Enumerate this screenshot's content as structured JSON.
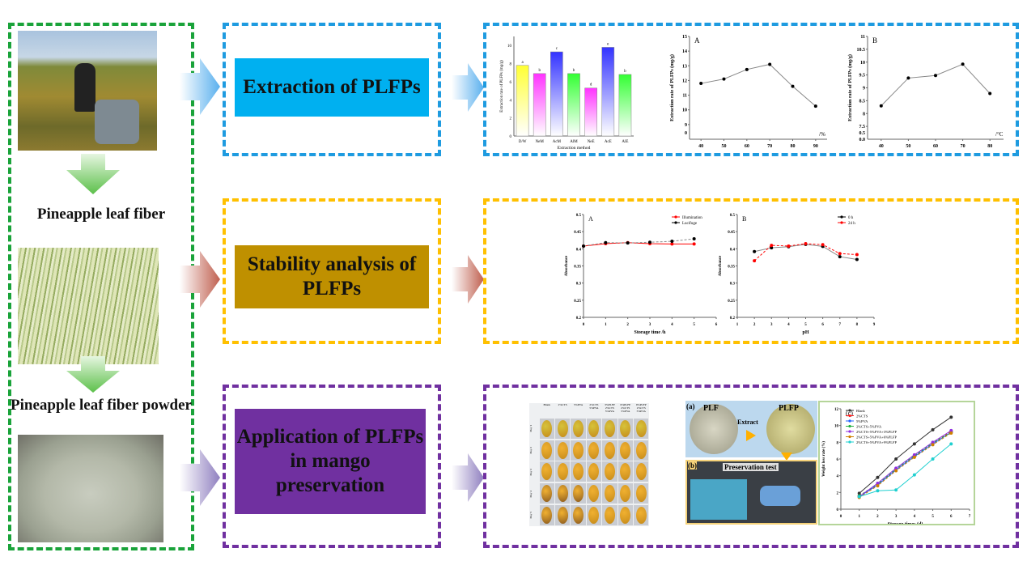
{
  "left_panel": {
    "label_fiber": "Pineapple leaf fiber",
    "label_powder": "Pineapple leaf fiber powder"
  },
  "steps": [
    {
      "title": "Extraction of PLFPs",
      "color": "#00b0f0",
      "border": "#1e9be0"
    },
    {
      "title": "Stability analysis of PLFPs",
      "color": "#bf9000",
      "border": "#ffc000"
    },
    {
      "title": "Application of PLFPs in mango preservation",
      "color": "#7030a0",
      "border": "#7030a0"
    }
  ],
  "mango_grid": {
    "columns": [
      "Blank",
      "2%CTS",
      "5%PVA",
      "2%CTS 5%PVA",
      "3%PLFP 2%CTS 5%PVA",
      "6%PLFP 2%CTS 5%PVA",
      "9%PLFP 2%CTS 5%PVA"
    ],
    "rows": [
      "Day 1",
      "Day 2",
      "Day 3",
      "Day 4",
      "Day 5"
    ]
  },
  "preservation_photos": {
    "label_a": "(a)",
    "label_b": "(b)",
    "plf": "PLF",
    "plfp": "PLFP",
    "extract": "Extract",
    "test": "Preservation test"
  },
  "chart_data": [
    {
      "id": "extraction-method",
      "type": "bar",
      "title": "",
      "xlabel": "Extraction method",
      "ylabel": "Extraction rate of PLFPs (mg/g)",
      "categories": [
        "D/W",
        "NeM",
        "AcM",
        "AlM",
        "NeE",
        "AcE",
        "AlE"
      ],
      "values": [
        7.8,
        6.9,
        9.3,
        6.9,
        5.3,
        9.8,
        6.8
      ],
      "letters": [
        "a",
        "b",
        "c",
        "b",
        "d",
        "e",
        "b"
      ],
      "colors": [
        "#ffff33",
        "#ff33ff",
        "#3333ff",
        "#33ff33",
        "#ff33ff",
        "#3333ff",
        "#33ff33"
      ],
      "ylim": [
        0,
        11
      ],
      "yticks": [
        0,
        2,
        4,
        6,
        8,
        10
      ]
    },
    {
      "id": "ethanol-concentration",
      "type": "line",
      "panel": "A",
      "xlabel": "",
      "unit": "/%",
      "ylabel": "Extraction rate of PLFPs (mg/g)",
      "x": [
        40,
        50,
        60,
        70,
        80,
        90
      ],
      "series": [
        {
          "name": "",
          "values": [
            11.8,
            12.1,
            12.75,
            13.1,
            11.6,
            10.25
          ],
          "color": "#000000"
        }
      ],
      "xlim": [
        35,
        95
      ],
      "ylim": [
        8,
        15
      ],
      "xticks": [
        40,
        50,
        60,
        70,
        80,
        90
      ],
      "yticks": [
        9,
        10,
        11,
        12,
        13,
        14,
        15
      ],
      "extra_yticks": [
        "0"
      ]
    },
    {
      "id": "temperature",
      "type": "line",
      "panel": "B",
      "xlabel": "",
      "unit": "/°C",
      "ylabel": "Extraction rate of PLFPs (mg/g)",
      "x": [
        40,
        50,
        60,
        70,
        80
      ],
      "series": [
        {
          "name": "",
          "values": [
            8.3,
            9.38,
            9.48,
            9.92,
            8.78
          ],
          "color": "#000000"
        }
      ],
      "xlim": [
        35,
        85
      ],
      "ylim": [
        7.0,
        11.0
      ],
      "xticks": [
        40,
        50,
        60,
        70,
        80
      ],
      "yticks": [
        7.5,
        8.0,
        8.5,
        9.0,
        9.5,
        10.0,
        10.5,
        11.0
      ],
      "extra_yticks": [
        "0.5",
        "0.0"
      ]
    },
    {
      "id": "storage-time-stability",
      "type": "line",
      "panel": "A",
      "xlabel": "Storage time /h",
      "ylabel": "Absorbance",
      "x": [
        0,
        1,
        2,
        3,
        4,
        5
      ],
      "series": [
        {
          "name": "Illumination",
          "values": [
            0.408,
            0.415,
            0.418,
            0.415,
            0.414,
            0.414
          ],
          "color": "#ff0000"
        },
        {
          "name": "Lucifuge",
          "values": [
            0.408,
            0.418,
            0.417,
            0.419,
            0.422,
            0.429
          ],
          "color": "#000000"
        }
      ],
      "xlim": [
        0,
        6
      ],
      "ylim": [
        0.2,
        0.5
      ],
      "xticks": [
        0,
        1,
        2,
        3,
        4,
        5,
        6
      ],
      "yticks": [
        0.2,
        0.25,
        0.3,
        0.35,
        0.4,
        0.45,
        0.5
      ],
      "legend": "top-right"
    },
    {
      "id": "ph-stability",
      "type": "line",
      "panel": "B",
      "xlabel": "pH",
      "ylabel": "Absorbance",
      "x": [
        2,
        3,
        4,
        5,
        6,
        7,
        8
      ],
      "series": [
        {
          "name": "0 h",
          "values": [
            0.392,
            0.403,
            0.406,
            0.413,
            0.407,
            0.377,
            0.369
          ],
          "color": "#000000"
        },
        {
          "name": "24 h",
          "values": [
            0.365,
            0.41,
            0.408,
            0.415,
            0.412,
            0.386,
            0.383
          ],
          "color": "#ff0000"
        }
      ],
      "xlim": [
        1,
        9
      ],
      "ylim": [
        0.2,
        0.5
      ],
      "xticks": [
        1,
        2,
        3,
        4,
        5,
        6,
        7,
        8,
        9
      ],
      "yticks": [
        0.2,
        0.25,
        0.3,
        0.35,
        0.4,
        0.45,
        0.5
      ],
      "legend": "top-right"
    },
    {
      "id": "weight-loss",
      "type": "line",
      "panel": "(c)",
      "xlabel": "Storage times (d)",
      "ylabel": "Weight loss rate (%)",
      "x": [
        1,
        2,
        3,
        4,
        5,
        6
      ],
      "series": [
        {
          "name": "Blank",
          "values": [
            1.9,
            3.8,
            6.0,
            7.8,
            9.5,
            11.0
          ],
          "color": "#333333"
        },
        {
          "name": "2%CTS",
          "values": [
            1.6,
            3.0,
            4.8,
            6.4,
            7.9,
            9.3
          ],
          "color": "#ff2020"
        },
        {
          "name": "5%PVA",
          "values": [
            1.5,
            2.9,
            4.7,
            6.3,
            7.8,
            9.2
          ],
          "color": "#2060ff"
        },
        {
          "name": "2%CTS+5%PVA",
          "values": [
            1.6,
            3.0,
            4.8,
            6.4,
            7.9,
            9.2
          ],
          "color": "#20b040"
        },
        {
          "name": "2%CTS+5%PVA+3%PLFP",
          "values": [
            1.5,
            3.1,
            4.9,
            6.5,
            8.0,
            9.4
          ],
          "color": "#9030e0"
        },
        {
          "name": "2%CTS+5%PVA+6%PLFP",
          "values": [
            1.4,
            2.8,
            4.6,
            6.2,
            7.7,
            9.1
          ],
          "color": "#d08000"
        },
        {
          "name": "2%CTS+5%PVA+9%PLFP",
          "values": [
            1.5,
            2.2,
            2.3,
            4.1,
            6.0,
            7.8
          ],
          "color": "#20d0d0"
        }
      ],
      "xlim": [
        0,
        7
      ],
      "ylim": [
        0,
        12
      ],
      "xticks": [
        0,
        1,
        2,
        3,
        4,
        5,
        6,
        7
      ],
      "yticks": [
        0,
        2,
        4,
        6,
        8,
        10,
        12
      ],
      "legend": "top-left"
    }
  ]
}
